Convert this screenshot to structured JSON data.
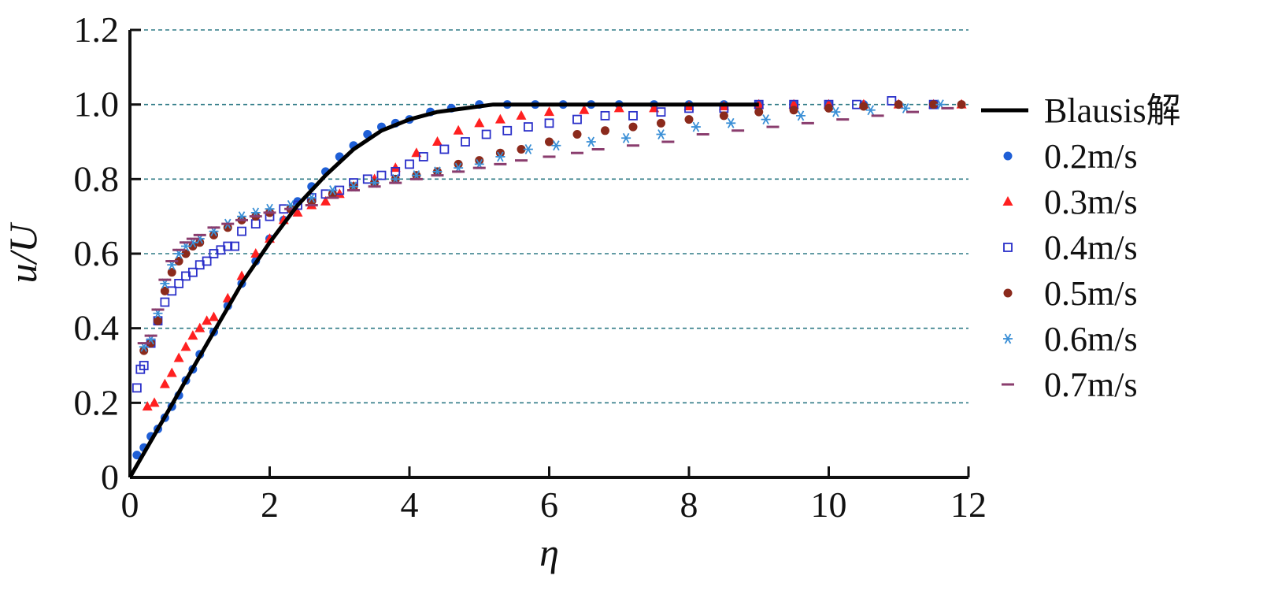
{
  "chart_data": {
    "type": "line",
    "xlabel": "η",
    "ylabel": "u/U",
    "xlim": [
      0,
      12
    ],
    "ylim": [
      0,
      1.2
    ],
    "x_ticks": [
      "0",
      "2",
      "4",
      "6",
      "8",
      "10",
      "12"
    ],
    "y_ticks": [
      "0",
      "0.2",
      "0.4",
      "0.6",
      "0.8",
      "1.0",
      "1.2"
    ],
    "grid": "horizontal-dashed",
    "legend_position": "right",
    "series": [
      {
        "name": "Blausis解",
        "marker": "line",
        "color": "#000000",
        "x": [
          0,
          0.4,
          0.8,
          1.2,
          1.6,
          2.0,
          2.4,
          2.8,
          3.2,
          3.6,
          4.0,
          4.4,
          4.8,
          5.2,
          6.0,
          7.0,
          8.0,
          9.0
        ],
        "y": [
          0,
          0.13,
          0.26,
          0.39,
          0.52,
          0.63,
          0.73,
          0.81,
          0.88,
          0.93,
          0.96,
          0.98,
          0.99,
          1.0,
          1.0,
          1.0,
          1.0,
          1.0
        ]
      },
      {
        "name": "0.2m/s",
        "marker": "circle",
        "color": "#1f5fd6",
        "x": [
          0.1,
          0.2,
          0.3,
          0.4,
          0.5,
          0.6,
          0.7,
          0.8,
          0.9,
          1.0,
          1.2,
          1.4,
          1.6,
          1.8,
          2.0,
          2.2,
          2.4,
          2.6,
          2.8,
          3.0,
          3.2,
          3.4,
          3.6,
          3.8,
          4.0,
          4.3,
          4.6,
          5.0,
          5.4,
          5.8,
          6.2,
          6.6,
          7.0,
          7.5,
          8.0,
          8.5,
          9.0,
          9.5,
          10.0,
          10.5,
          11.0,
          11.5
        ],
        "y": [
          0.06,
          0.08,
          0.11,
          0.13,
          0.16,
          0.19,
          0.22,
          0.26,
          0.29,
          0.33,
          0.39,
          0.46,
          0.52,
          0.58,
          0.64,
          0.69,
          0.74,
          0.78,
          0.82,
          0.86,
          0.89,
          0.92,
          0.94,
          0.95,
          0.96,
          0.98,
          0.99,
          1.0,
          1.0,
          1.0,
          1.0,
          1.0,
          1.0,
          1.0,
          1.0,
          1.0,
          1.0,
          1.0,
          1.0,
          1.0,
          1.0,
          1.0
        ]
      },
      {
        "name": "0.3m/s",
        "marker": "triangle",
        "color": "#ff2020",
        "x": [
          0.25,
          0.35,
          0.5,
          0.6,
          0.7,
          0.8,
          0.9,
          1.0,
          1.1,
          1.2,
          1.4,
          1.6,
          1.8,
          2.0,
          2.2,
          2.4,
          2.6,
          2.8,
          3.0,
          3.2,
          3.5,
          3.8,
          4.1,
          4.4,
          4.7,
          5.0,
          5.3,
          5.6,
          6.0,
          6.5,
          7.0,
          7.5,
          8.0,
          8.5,
          9.0,
          9.5,
          10.0,
          10.5,
          11.0,
          11.5,
          11.9
        ],
        "y": [
          0.19,
          0.2,
          0.25,
          0.28,
          0.32,
          0.35,
          0.38,
          0.4,
          0.42,
          0.43,
          0.48,
          0.54,
          0.6,
          0.64,
          0.69,
          0.71,
          0.73,
          0.74,
          0.76,
          0.78,
          0.8,
          0.83,
          0.87,
          0.9,
          0.93,
          0.95,
          0.96,
          0.97,
          0.98,
          0.985,
          0.99,
          0.99,
          0.995,
          0.995,
          1.0,
          1.0,
          1.0,
          1.0,
          1.0,
          1.0,
          1.0
        ]
      },
      {
        "name": "0.4m/s",
        "marker": "open-square",
        "color": "#2a2fc9",
        "x": [
          0.1,
          0.15,
          0.2,
          0.3,
          0.4,
          0.5,
          0.6,
          0.7,
          0.8,
          0.9,
          1.0,
          1.1,
          1.2,
          1.3,
          1.4,
          1.5,
          1.6,
          1.8,
          2.0,
          2.2,
          2.4,
          2.6,
          2.8,
          3.0,
          3.2,
          3.4,
          3.6,
          3.8,
          4.0,
          4.2,
          4.5,
          4.8,
          5.1,
          5.4,
          5.7,
          6.0,
          6.4,
          6.8,
          7.2,
          7.6,
          8.0,
          8.5,
          9.0,
          9.5,
          10.0,
          10.4,
          10.9,
          11.5
        ],
        "y": [
          0.24,
          0.29,
          0.3,
          0.36,
          0.42,
          0.47,
          0.5,
          0.52,
          0.54,
          0.55,
          0.57,
          0.58,
          0.6,
          0.61,
          0.62,
          0.62,
          0.66,
          0.68,
          0.7,
          0.72,
          0.73,
          0.75,
          0.76,
          0.77,
          0.79,
          0.8,
          0.81,
          0.82,
          0.84,
          0.86,
          0.88,
          0.9,
          0.92,
          0.93,
          0.94,
          0.95,
          0.96,
          0.97,
          0.97,
          0.98,
          0.99,
          0.99,
          1.0,
          1.0,
          1.0,
          1.0,
          1.01,
          1.0
        ]
      },
      {
        "name": "0.5m/s",
        "marker": "circle",
        "color": "#8b2a1c",
        "x": [
          0.2,
          0.3,
          0.4,
          0.5,
          0.6,
          0.7,
          0.8,
          0.9,
          1.0,
          1.2,
          1.4,
          1.6,
          1.8,
          2.0,
          2.3,
          2.6,
          2.9,
          3.2,
          3.5,
          3.8,
          4.1,
          4.4,
          4.7,
          5.0,
          5.3,
          5.6,
          6.0,
          6.4,
          6.8,
          7.2,
          7.6,
          8.0,
          8.5,
          9.0,
          9.5,
          10.0,
          10.5,
          11.0,
          11.5,
          11.9
        ],
        "y": [
          0.34,
          0.36,
          0.42,
          0.5,
          0.55,
          0.58,
          0.6,
          0.62,
          0.63,
          0.65,
          0.67,
          0.69,
          0.7,
          0.71,
          0.72,
          0.74,
          0.76,
          0.78,
          0.79,
          0.8,
          0.81,
          0.82,
          0.84,
          0.85,
          0.87,
          0.88,
          0.9,
          0.92,
          0.93,
          0.94,
          0.95,
          0.96,
          0.97,
          0.98,
          0.985,
          0.99,
          0.995,
          1.0,
          1.0,
          1.0
        ]
      },
      {
        "name": "0.6m/s",
        "marker": "asterisk",
        "color": "#3a8fd6",
        "x": [
          0.2,
          0.3,
          0.4,
          0.5,
          0.6,
          0.7,
          0.8,
          0.9,
          1.0,
          1.2,
          1.4,
          1.6,
          1.8,
          2.0,
          2.3,
          2.6,
          2.9,
          3.2,
          3.5,
          3.8,
          4.1,
          4.4,
          4.7,
          5.0,
          5.3,
          5.7,
          6.1,
          6.6,
          7.1,
          7.6,
          8.1,
          8.6,
          9.1,
          9.6,
          10.1,
          10.6,
          11.1,
          11.6
        ],
        "y": [
          0.35,
          0.37,
          0.44,
          0.52,
          0.57,
          0.6,
          0.62,
          0.63,
          0.64,
          0.66,
          0.68,
          0.7,
          0.71,
          0.72,
          0.73,
          0.75,
          0.77,
          0.78,
          0.79,
          0.8,
          0.81,
          0.82,
          0.83,
          0.84,
          0.86,
          0.88,
          0.89,
          0.9,
          0.91,
          0.92,
          0.94,
          0.95,
          0.96,
          0.97,
          0.98,
          0.985,
          0.99,
          1.0
        ]
      },
      {
        "name": "0.7m/s",
        "marker": "dash",
        "color": "#8a3d6e",
        "x": [
          0.2,
          0.3,
          0.4,
          0.5,
          0.6,
          0.7,
          0.8,
          0.9,
          1.0,
          1.2,
          1.4,
          1.6,
          1.8,
          2.0,
          2.3,
          2.6,
          2.9,
          3.2,
          3.5,
          3.8,
          4.1,
          4.4,
          4.7,
          5.0,
          5.3,
          5.6,
          6.0,
          6.4,
          6.7,
          7.2,
          7.7,
          8.2,
          8.7,
          9.2,
          9.7,
          10.2,
          10.7,
          11.2,
          11.7
        ],
        "y": [
          0.36,
          0.38,
          0.45,
          0.53,
          0.58,
          0.61,
          0.63,
          0.64,
          0.65,
          0.67,
          0.68,
          0.69,
          0.7,
          0.71,
          0.72,
          0.73,
          0.75,
          0.77,
          0.78,
          0.79,
          0.8,
          0.81,
          0.82,
          0.83,
          0.84,
          0.85,
          0.86,
          0.87,
          0.88,
          0.89,
          0.9,
          0.92,
          0.93,
          0.94,
          0.95,
          0.96,
          0.97,
          0.98,
          0.99
        ]
      }
    ]
  }
}
